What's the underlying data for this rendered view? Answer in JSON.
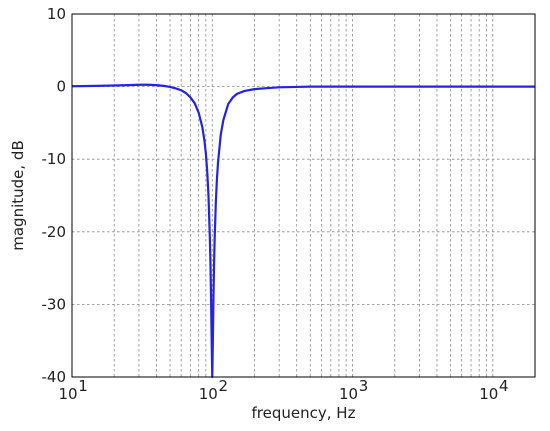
{
  "chart_data": {
    "type": "line",
    "xlabel": "frequency, Hz",
    "ylabel": "magnitude, dB",
    "xscale": "log",
    "xlim": [
      10,
      20000
    ],
    "ylim": [
      -40,
      10
    ],
    "grid": true,
    "x_ticks": [
      {
        "base": "10",
        "exp": "1",
        "value": 10
      },
      {
        "base": "10",
        "exp": "2",
        "value": 100
      },
      {
        "base": "10",
        "exp": "3",
        "value": 1000
      },
      {
        "base": "10",
        "exp": "4",
        "value": 10000
      }
    ],
    "y_ticks": [
      {
        "label": "10",
        "value": 10
      },
      {
        "label": "0",
        "value": 0
      },
      {
        "label": "-10",
        "value": -10
      },
      {
        "label": "-20",
        "value": -20
      },
      {
        "label": "-30",
        "value": -30
      },
      {
        "label": "-40",
        "value": -40
      }
    ],
    "series": [
      {
        "color": "#2323e8",
        "x": [
          10,
          15,
          20,
          25,
          30,
          35,
          40,
          45,
          50,
          55,
          60,
          65,
          70,
          75,
          80,
          85,
          88,
          90,
          92,
          94,
          96,
          97,
          98,
          99,
          100,
          101,
          102,
          103,
          104,
          106,
          108,
          110,
          115,
          120,
          130,
          140,
          150,
          170,
          200,
          250,
          300,
          400,
          500,
          700,
          1000,
          2000,
          3000,
          5000,
          7000,
          10000,
          15000,
          20000
        ],
        "y": [
          0.05,
          0.1,
          0.15,
          0.2,
          0.25,
          0.25,
          0.2,
          0.1,
          -0.05,
          -0.25,
          -0.5,
          -0.9,
          -1.5,
          -2.3,
          -3.6,
          -5.6,
          -7.5,
          -9.2,
          -11.6,
          -15.0,
          -20.5,
          -24.0,
          -29.0,
          -35.0,
          -40.0,
          -35.0,
          -29.0,
          -24.5,
          -21.0,
          -16.0,
          -12.7,
          -10.4,
          -6.6,
          -4.6,
          -2.4,
          -1.5,
          -1.0,
          -0.6,
          -0.35,
          -0.2,
          -0.1,
          -0.05,
          0.0,
          0.0,
          0.0,
          0.0,
          0.0,
          0.0,
          0.0,
          0.0,
          0.0,
          0.0
        ]
      }
    ]
  }
}
